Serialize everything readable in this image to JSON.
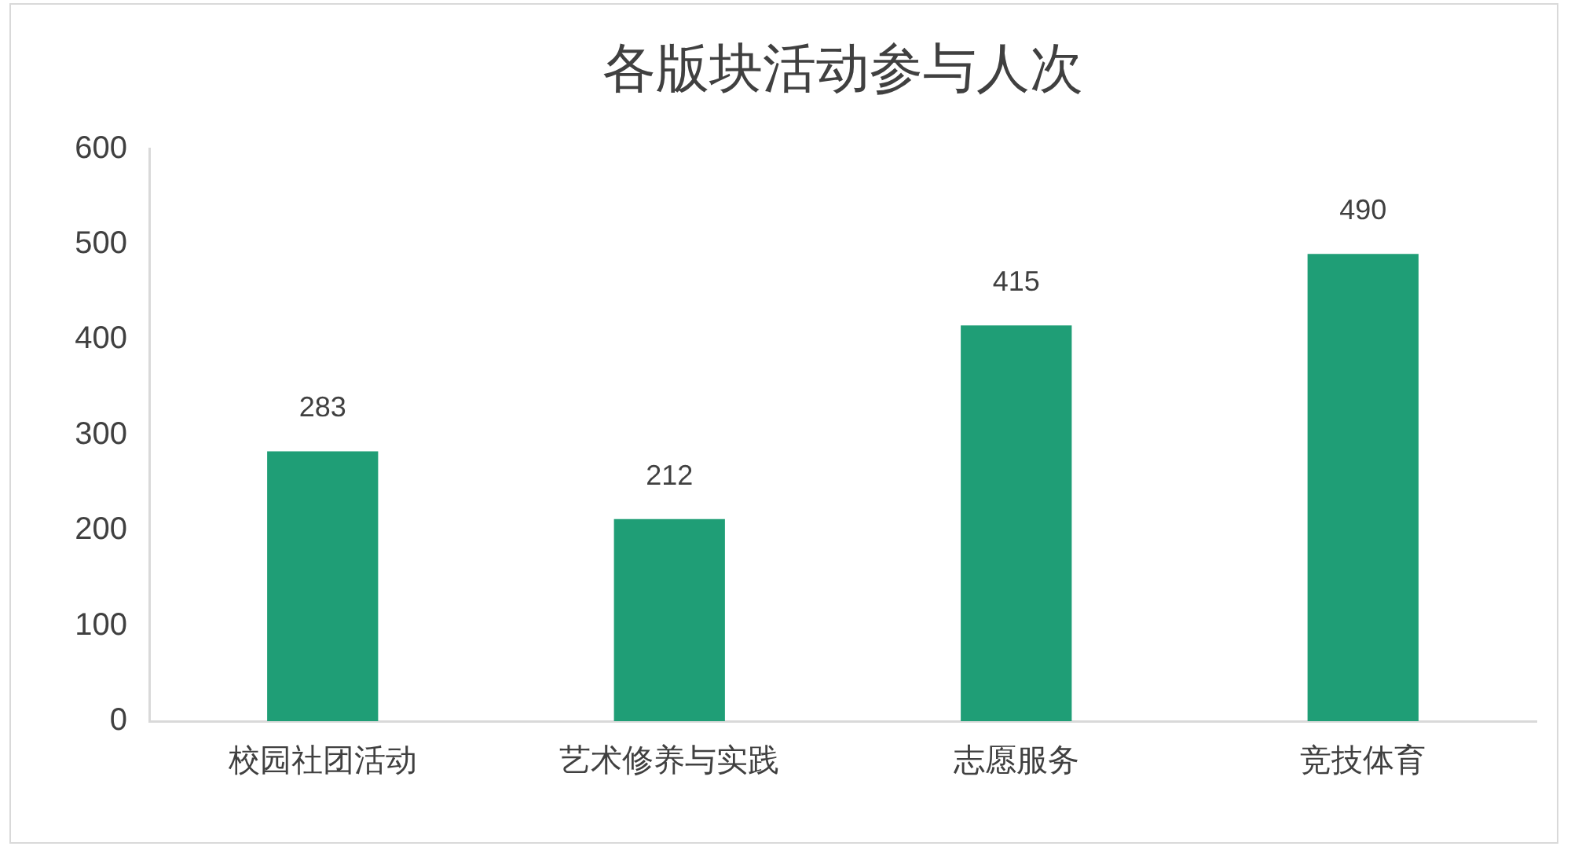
{
  "chart_data": {
    "type": "bar",
    "title": "各版块活动参与人次",
    "categories": [
      "校园社团活动",
      "艺术修养与实践",
      "志愿服务",
      "竞技体育"
    ],
    "values": [
      283,
      212,
      415,
      490
    ],
    "color": "#1f9e76",
    "ylim": [
      0,
      600
    ],
    "yticks": [
      0,
      100,
      200,
      300,
      400,
      500,
      600
    ],
    "grid": false,
    "data_labels": true,
    "legend": false
  }
}
